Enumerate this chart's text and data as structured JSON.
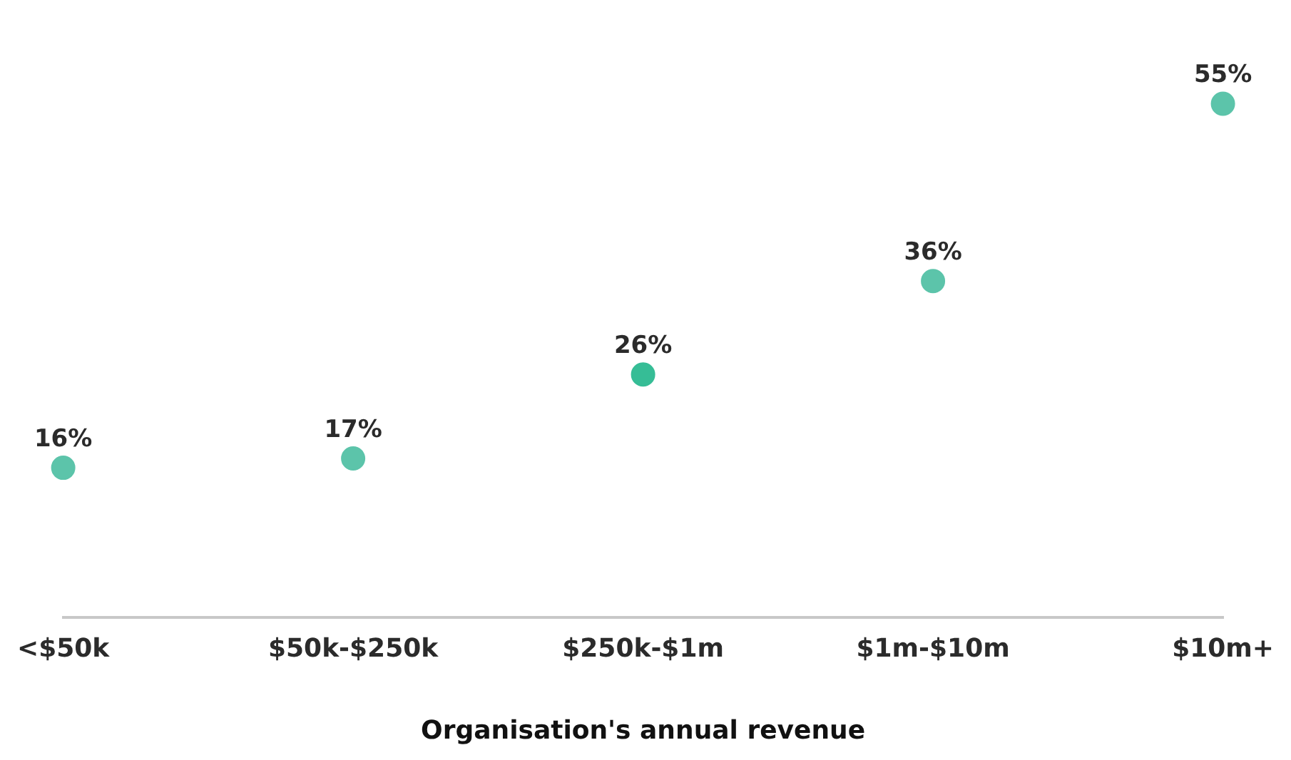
{
  "chart_data": {
    "type": "scatter",
    "xlabel": "Organisation's annual revenue",
    "categories": [
      "<$50k",
      "$50k-$250k",
      "$250k-$1m",
      "$1m-$10m",
      "$10m+"
    ],
    "values": [
      16,
      17,
      26,
      36,
      55
    ],
    "colors": [
      "#5cc4aa",
      "#5cc4aa",
      "#36bd96",
      "#5cc4aa",
      "#5cc4aa"
    ],
    "value_labels": [
      "16%",
      "17%",
      "26%",
      "36%",
      "55%"
    ],
    "marker": "circle",
    "grid": false,
    "legend": false,
    "tick_labels": "x"
  }
}
